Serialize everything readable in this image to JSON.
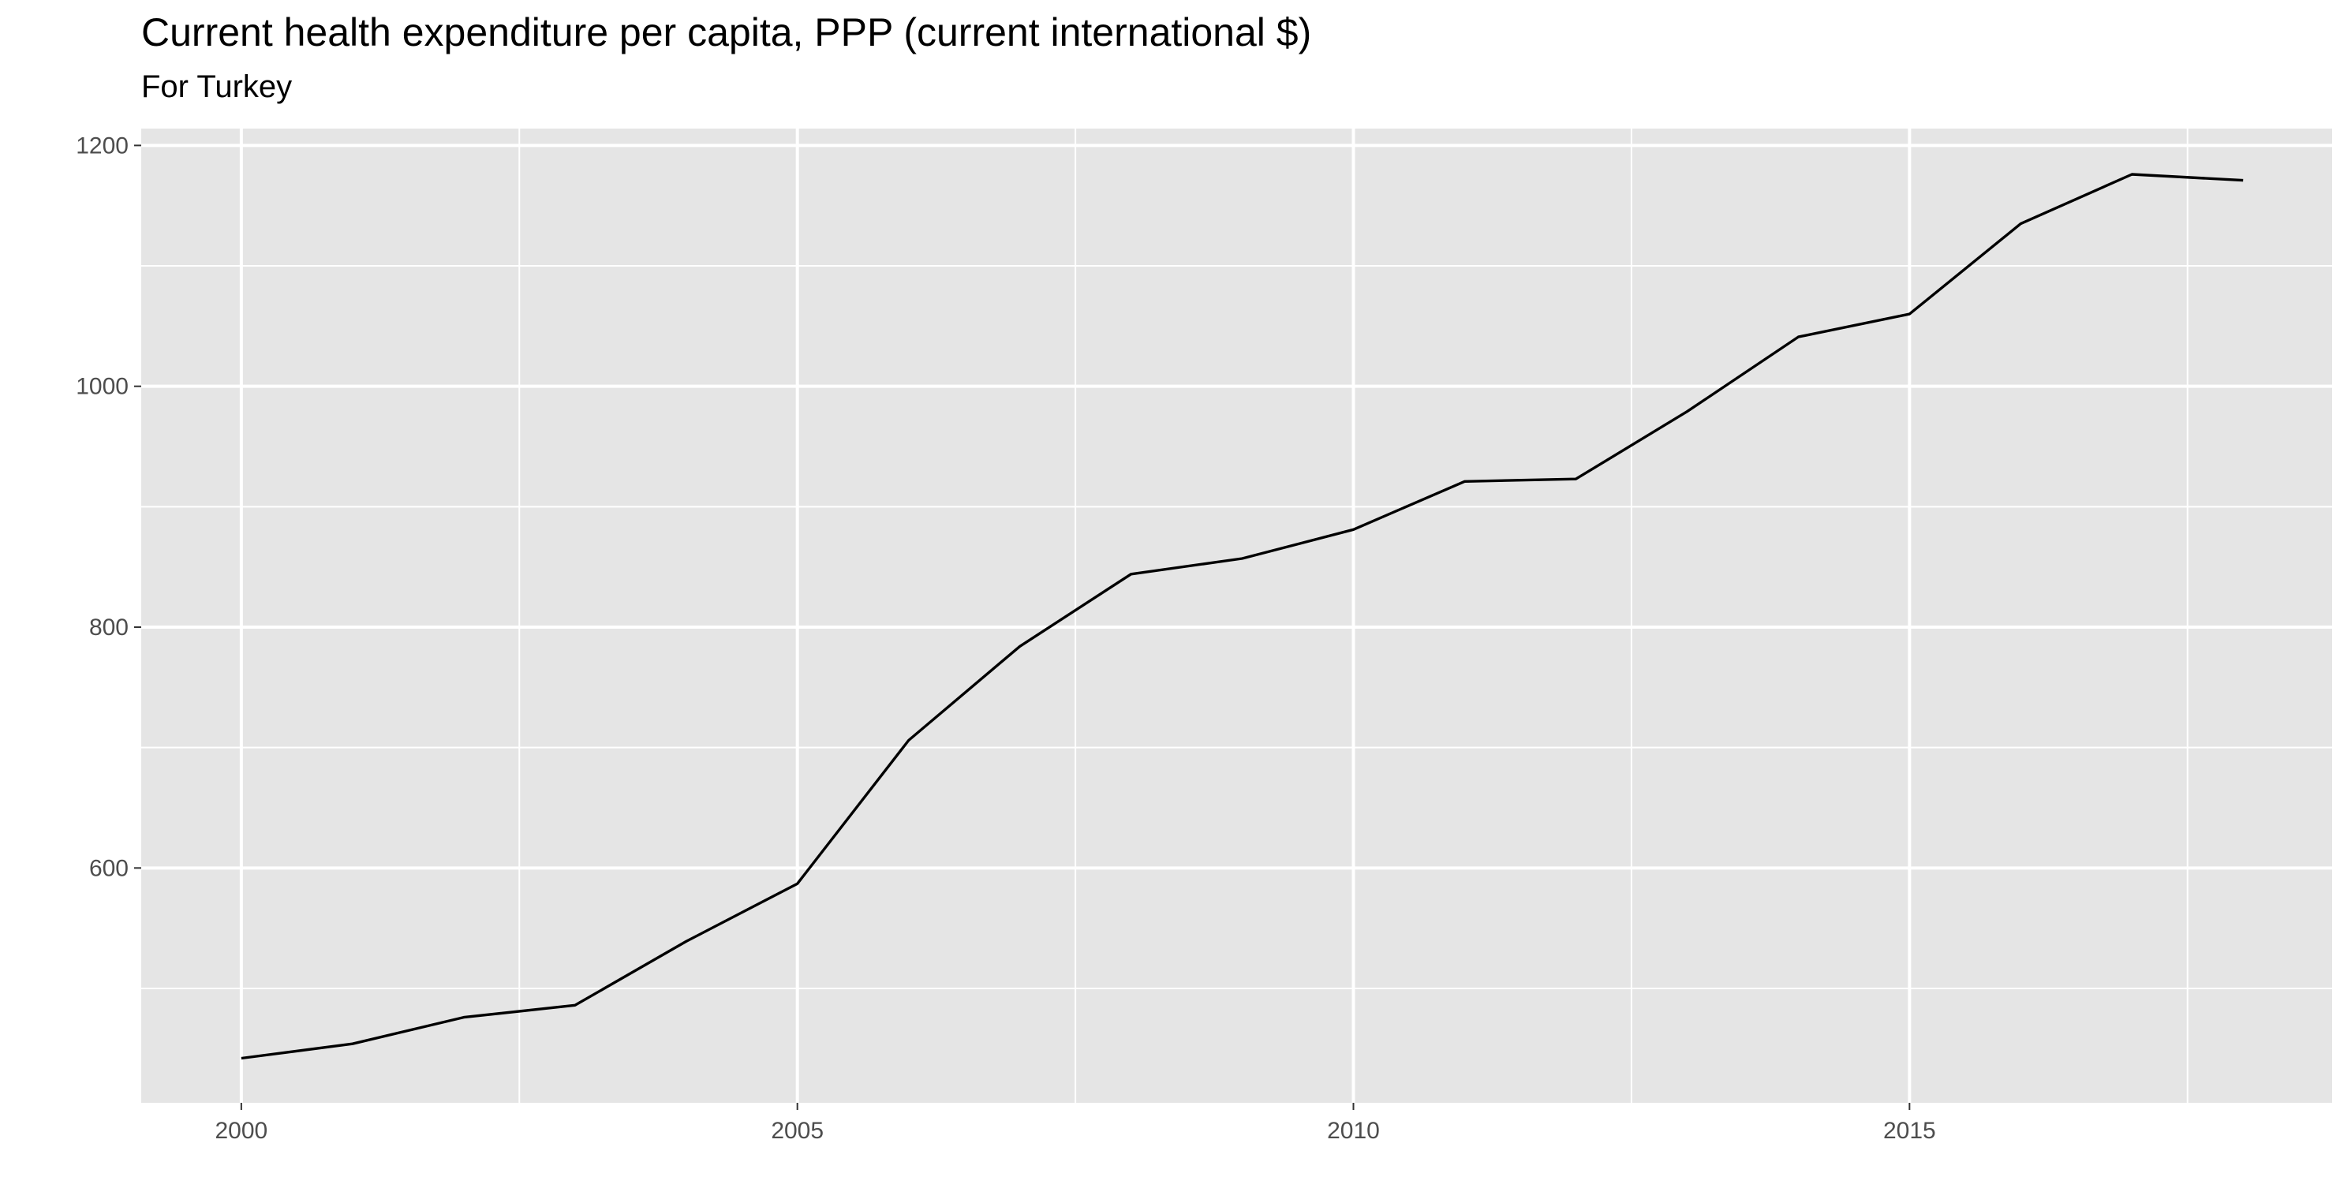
{
  "chart_data": {
    "type": "line",
    "title": "Current health expenditure per capita, PPP (current international $)",
    "subtitle": "For Turkey",
    "xlabel": "",
    "ylabel": "",
    "x": [
      2000,
      2001,
      2002,
      2003,
      2004,
      2005,
      2006,
      2007,
      2008,
      2009,
      2010,
      2011,
      2012,
      2013,
      2014,
      2015,
      2016,
      2017,
      2018
    ],
    "series": [
      {
        "values": [
          442,
          454,
          476,
          486,
          539,
          587,
          706,
          784,
          844,
          857,
          881,
          921,
          923,
          979,
          1041,
          1060,
          1135,
          1176,
          1171
        ]
      }
    ],
    "xlim": [
      1999.1,
      2018.8
    ],
    "ylim": [
      405,
      1214
    ],
    "x_ticks": [
      2000,
      2005,
      2010,
      2015
    ],
    "x_tick_labels": [
      "2000",
      "2005",
      "2010",
      "2015"
    ],
    "y_ticks": [
      600,
      800,
      1000,
      1200
    ],
    "y_tick_labels": [
      "600",
      "800",
      "1000",
      "1200"
    ],
    "grid": true,
    "legend": "none",
    "colors": {
      "panel": "#e5e5e5",
      "grid": "#ffffff",
      "line": "#000000",
      "tick_text": "#4d4d4d"
    }
  }
}
